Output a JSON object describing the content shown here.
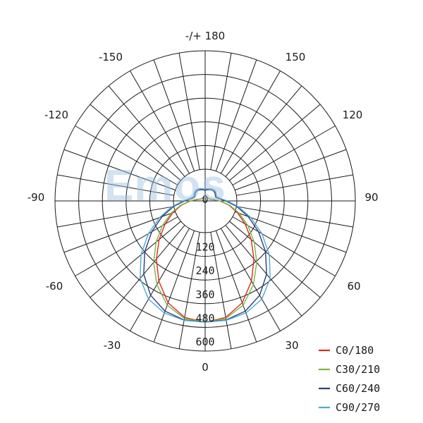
{
  "watermark": "Emos",
  "chart_data": {
    "type": "polar",
    "angle_labels": [
      {
        "angle": 180,
        "label": "-/+ 180"
      },
      {
        "angle": -150,
        "label": "-150"
      },
      {
        "angle": 150,
        "label": "150"
      },
      {
        "angle": -120,
        "label": "-120"
      },
      {
        "angle": 120,
        "label": "120"
      },
      {
        "angle": -90,
        "label": "-90"
      },
      {
        "angle": 90,
        "label": "90"
      },
      {
        "angle": -60,
        "label": "-60"
      },
      {
        "angle": 60,
        "label": "60"
      },
      {
        "angle": -30,
        "label": "-30"
      },
      {
        "angle": 30,
        "label": "30"
      },
      {
        "angle": 0,
        "label": "0"
      }
    ],
    "radial_ticks": [
      0,
      120,
      240,
      360,
      480,
      600
    ],
    "rlim": [
      0,
      600
    ],
    "spoke_step_deg": 10,
    "grid": true,
    "legend_position": "bottom-right",
    "series": [
      {
        "name": "C0/180",
        "color": "#d92b1f",
        "angles": [
          0,
          10,
          20,
          30,
          40,
          50,
          60,
          70,
          80,
          90,
          100,
          110,
          120,
          130,
          140,
          150,
          160,
          170,
          180
        ],
        "values": [
          600,
          585,
          535,
          455,
          370,
          290,
          220,
          160,
          108,
          60,
          26,
          12,
          8,
          6,
          5,
          4,
          4,
          3,
          3
        ]
      },
      {
        "name": "C30/210",
        "color": "#7cb342",
        "angles": [
          0,
          10,
          20,
          30,
          40,
          50,
          60,
          70,
          80,
          90,
          100,
          110,
          120,
          130,
          140,
          150,
          160,
          170,
          180
        ],
        "values": [
          600,
          590,
          548,
          475,
          392,
          310,
          236,
          170,
          112,
          62,
          30,
          14,
          9,
          7,
          5,
          4,
          4,
          3,
          3
        ]
      },
      {
        "name": "C60/240",
        "color": "#2b3e7c",
        "angles": [
          0,
          10,
          20,
          30,
          40,
          50,
          60,
          70,
          80,
          90,
          100,
          110,
          120,
          130,
          140,
          150,
          160,
          170,
          180
        ],
        "values": [
          600,
          598,
          580,
          538,
          470,
          385,
          298,
          218,
          148,
          90,
          55,
          42,
          45,
          50,
          52,
          50,
          46,
          43,
          40
        ]
      },
      {
        "name": "C90/270",
        "color": "#4fa8d8",
        "angles": [
          0,
          10,
          20,
          30,
          40,
          50,
          60,
          70,
          80,
          90,
          100,
          110,
          120,
          130,
          140,
          150,
          160,
          170,
          180
        ],
        "values": [
          600,
          600,
          590,
          560,
          498,
          410,
          318,
          232,
          158,
          98,
          62,
          48,
          52,
          56,
          58,
          56,
          52,
          48,
          45
        ]
      }
    ]
  }
}
